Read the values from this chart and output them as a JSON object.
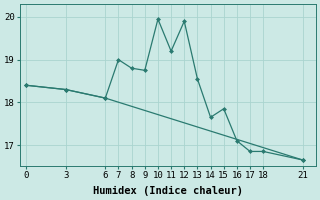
{
  "xlabel": "Humidex (Indice chaleur)",
  "ylabel": "",
  "bg_color": "#cce9e5",
  "grid_color": "#aad4cf",
  "line_color": "#2a7a70",
  "line1_x": [
    0,
    3,
    6,
    7,
    8,
    9,
    10,
    11,
    12,
    13,
    14,
    15,
    16,
    17,
    18,
    21
  ],
  "line1_y": [
    18.4,
    18.3,
    18.1,
    19.0,
    18.8,
    18.75,
    19.95,
    19.2,
    19.9,
    18.55,
    17.65,
    17.85,
    17.1,
    16.85,
    16.85,
    16.65
  ],
  "line2_x": [
    0,
    3,
    6,
    21
  ],
  "line2_y": [
    18.4,
    18.3,
    18.1,
    16.65
  ],
  "xlim": [
    -0.5,
    22
  ],
  "ylim": [
    16.5,
    20.3
  ],
  "xticks": [
    0,
    3,
    6,
    7,
    8,
    9,
    10,
    11,
    12,
    13,
    14,
    15,
    16,
    17,
    18,
    21
  ],
  "yticks": [
    17,
    18,
    19,
    20
  ],
  "tick_fontsize": 6.5,
  "xlabel_fontsize": 7.5,
  "marker_size": 2.5,
  "linewidth": 0.9
}
